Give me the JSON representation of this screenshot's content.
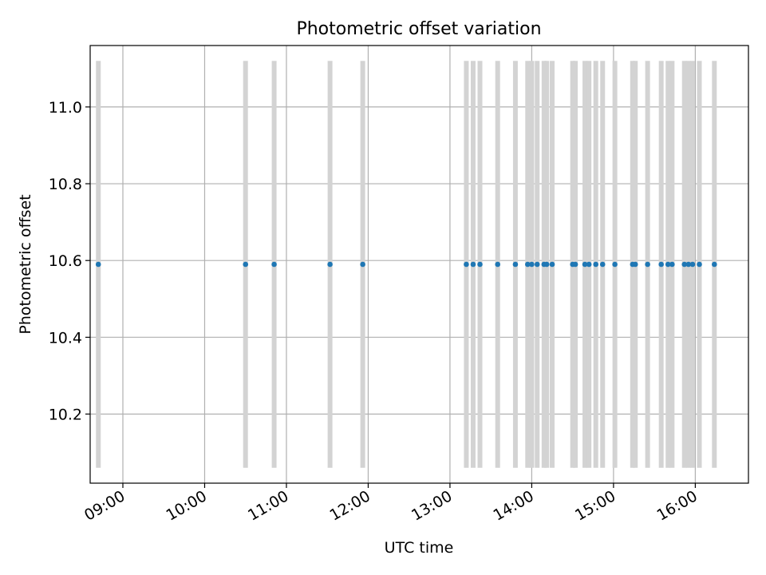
{
  "chart_data": {
    "type": "scatter",
    "title": "Photometric offset variation",
    "xlabel": "UTC time",
    "ylabel": "Photometric offset",
    "x_ticks": [
      "09:00",
      "10:00",
      "11:00",
      "12:00",
      "13:00",
      "14:00",
      "15:00",
      "16:00"
    ],
    "y_ticks": [
      "10.2",
      "10.4",
      "10.6",
      "10.8",
      "11.0"
    ],
    "xlim": [
      "08:36",
      "16:39"
    ],
    "ylim": [
      10.02,
      11.16
    ],
    "grid": true,
    "series": [
      {
        "color": "#1f77b4",
        "points": [
          {
            "t": "08:42",
            "y": 10.59,
            "err": 0.53
          },
          {
            "t": "10:30",
            "y": 10.59,
            "err": 0.53
          },
          {
            "t": "10:51",
            "y": 10.59,
            "err": 0.53
          },
          {
            "t": "11:32",
            "y": 10.59,
            "err": 0.53
          },
          {
            "t": "11:56",
            "y": 10.59,
            "err": 0.53
          },
          {
            "t": "13:12",
            "y": 10.59,
            "err": 0.53
          },
          {
            "t": "13:17",
            "y": 10.59,
            "err": 0.53
          },
          {
            "t": "13:22",
            "y": 10.59,
            "err": 0.53
          },
          {
            "t": "13:35",
            "y": 10.59,
            "err": 0.53
          },
          {
            "t": "13:48",
            "y": 10.59,
            "err": 0.53
          },
          {
            "t": "13:57",
            "y": 10.59,
            "err": 0.53
          },
          {
            "t": "14:00",
            "y": 10.59,
            "err": 0.53
          },
          {
            "t": "14:04",
            "y": 10.59,
            "err": 0.53
          },
          {
            "t": "14:09",
            "y": 10.59,
            "err": 0.53
          },
          {
            "t": "14:11",
            "y": 10.59,
            "err": 0.53
          },
          {
            "t": "14:15",
            "y": 10.59,
            "err": 0.53
          },
          {
            "t": "14:30",
            "y": 10.59,
            "err": 0.53
          },
          {
            "t": "14:32",
            "y": 10.59,
            "err": 0.53
          },
          {
            "t": "14:39",
            "y": 10.59,
            "err": 0.53
          },
          {
            "t": "14:42",
            "y": 10.59,
            "err": 0.53
          },
          {
            "t": "14:47",
            "y": 10.59,
            "err": 0.53
          },
          {
            "t": "14:52",
            "y": 10.59,
            "err": 0.53
          },
          {
            "t": "15:01",
            "y": 10.59,
            "err": 0.53
          },
          {
            "t": "15:14",
            "y": 10.59,
            "err": 0.53
          },
          {
            "t": "15:16",
            "y": 10.59,
            "err": 0.53
          },
          {
            "t": "15:25",
            "y": 10.59,
            "err": 0.53
          },
          {
            "t": "15:35",
            "y": 10.59,
            "err": 0.53
          },
          {
            "t": "15:40",
            "y": 10.59,
            "err": 0.53
          },
          {
            "t": "15:43",
            "y": 10.59,
            "err": 0.53
          },
          {
            "t": "15:52",
            "y": 10.59,
            "err": 0.53
          },
          {
            "t": "15:55",
            "y": 10.59,
            "err": 0.53
          },
          {
            "t": "15:58",
            "y": 10.59,
            "err": 0.53
          },
          {
            "t": "16:03",
            "y": 10.59,
            "err": 0.53
          },
          {
            "t": "16:14",
            "y": 10.59,
            "err": 0.53
          }
        ]
      }
    ]
  }
}
